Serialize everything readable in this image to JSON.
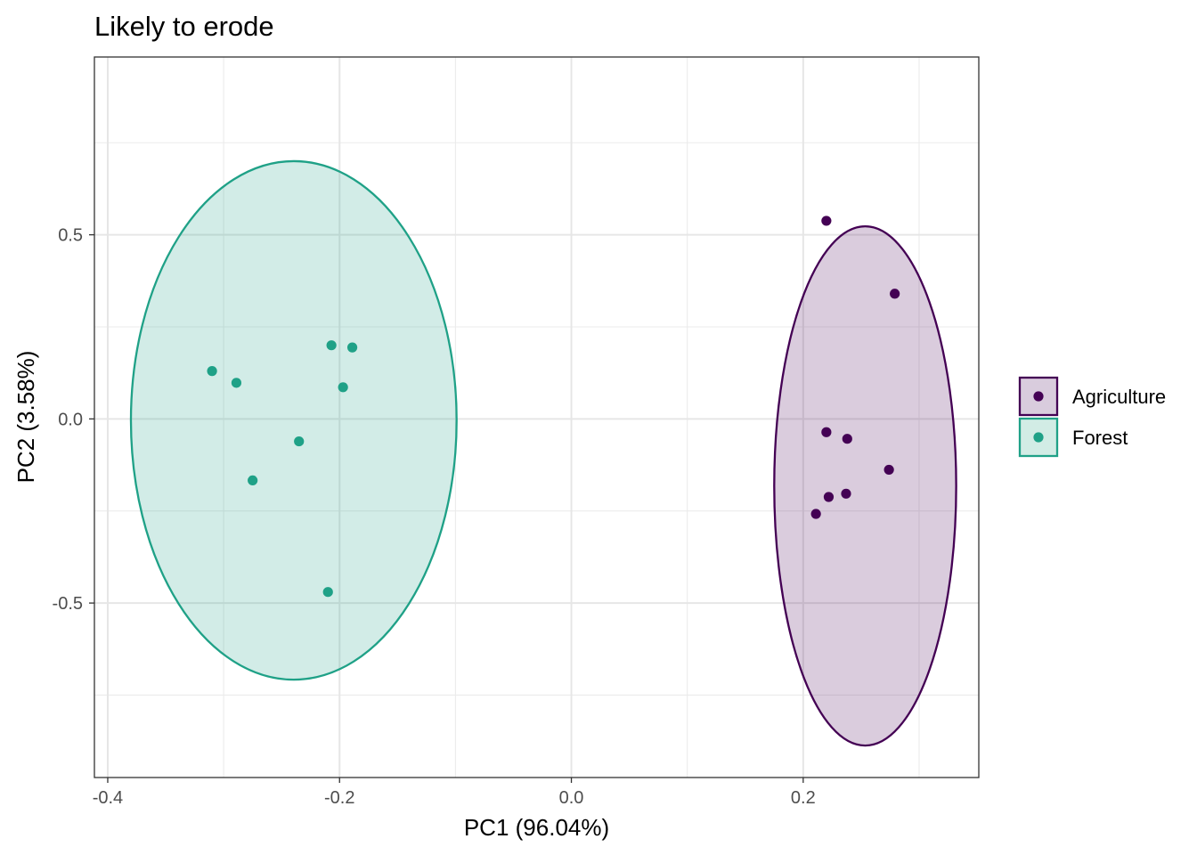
{
  "chart_data": {
    "type": "scatter",
    "title": "Likely to erode",
    "xlabel": "PC1 (96.04%)",
    "ylabel": "PC2 (3.58%)",
    "xlim": [
      -0.4115,
      0.3515
    ],
    "ylim": [
      -0.9738,
      0.9828
    ],
    "x_ticks": [
      {
        "value": -0.4,
        "label": "-0.4"
      },
      {
        "value": -0.2,
        "label": "-0.2"
      },
      {
        "value": 0.0,
        "label": "0.0"
      },
      {
        "value": 0.2,
        "label": "0.2"
      }
    ],
    "y_ticks": [
      {
        "value": 0.5,
        "label": "0.5"
      },
      {
        "value": 0.0,
        "label": "0.0"
      },
      {
        "value": -0.5,
        "label": "-0.5"
      }
    ],
    "grid": true,
    "legend_position": "right",
    "series": [
      {
        "name": "Agriculture",
        "color": "#440154",
        "fill": "#d9ccdd",
        "ellipse": {
          "cx": 0.2535,
          "cy": -0.182,
          "rx": 0.0785,
          "ry": 0.705
        },
        "points": [
          {
            "x": 0.22,
            "y": 0.538
          },
          {
            "x": 0.279,
            "y": 0.34
          },
          {
            "x": 0.22,
            "y": -0.036
          },
          {
            "x": 0.238,
            "y": -0.054
          },
          {
            "x": 0.274,
            "y": -0.138
          },
          {
            "x": 0.237,
            "y": -0.203
          },
          {
            "x": 0.222,
            "y": -0.212
          },
          {
            "x": 0.211,
            "y": -0.258
          }
        ]
      },
      {
        "name": "Forest",
        "color": "#1fa187",
        "fill": "#d2ece5",
        "ellipse": {
          "cx": -0.2395,
          "cy": -0.004,
          "rx": 0.1405,
          "ry": 0.704
        },
        "points": [
          {
            "x": -0.31,
            "y": 0.13
          },
          {
            "x": -0.289,
            "y": 0.098
          },
          {
            "x": -0.207,
            "y": 0.2
          },
          {
            "x": -0.189,
            "y": 0.194
          },
          {
            "x": -0.197,
            "y": 0.086
          },
          {
            "x": -0.235,
            "y": -0.061
          },
          {
            "x": -0.275,
            "y": -0.167
          },
          {
            "x": -0.21,
            "y": -0.47
          }
        ]
      }
    ]
  }
}
